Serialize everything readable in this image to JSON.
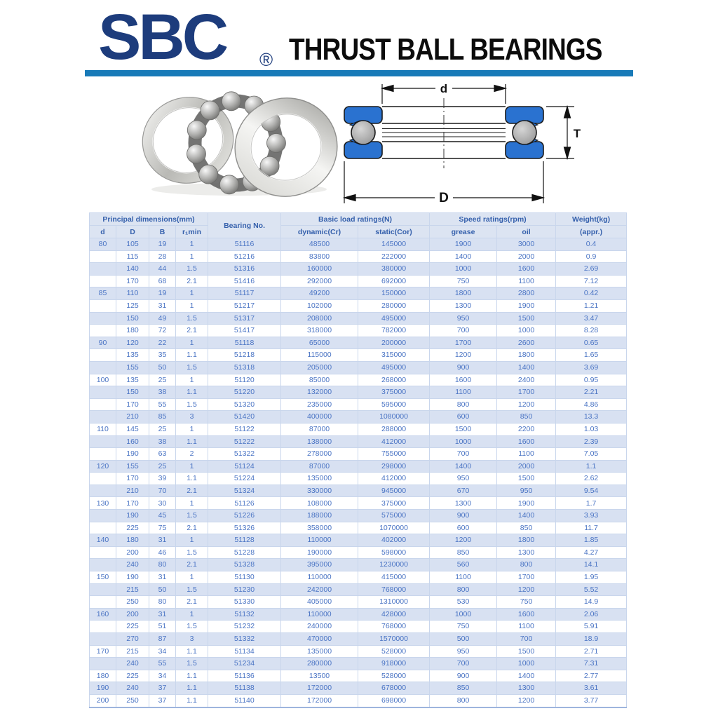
{
  "header": {
    "logo_text": "SBC",
    "registered_mark": "®",
    "title": "THRUST BALL BEARINGS"
  },
  "colors": {
    "divider_bar": "#187ab8",
    "logo_navy": "#1d3c7c",
    "table_header_text": "#3560ac",
    "table_cell_text": "#4a74c4",
    "band_row": "#d8e1f2",
    "diagram_washer_blue": "#2a72d0",
    "ball_gray": "#a9a9a9"
  },
  "diagram": {
    "labels": {
      "bore": "d",
      "outer": "D",
      "height": "T"
    }
  },
  "table": {
    "groups": {
      "principal": "Principal dimensions(mm)",
      "bearing_no": "Bearing No.",
      "basic": "Basic load ratings(N)",
      "speed": "Speed ratings(rpm)",
      "weight": "Weight(kg)"
    },
    "sub": [
      "d",
      "D",
      "B",
      "r₁min",
      "dynamic(Cr)",
      "static(Cor)",
      "grease",
      "oil",
      "(appr.)"
    ],
    "rows": [
      [
        "80",
        "105",
        "19",
        "1",
        "51116",
        "48500",
        "145000",
        "1900",
        "3000",
        "0.4"
      ],
      [
        "",
        "115",
        "28",
        "1",
        "51216",
        "83800",
        "222000",
        "1400",
        "2000",
        "0.9"
      ],
      [
        "",
        "140",
        "44",
        "1.5",
        "51316",
        "160000",
        "380000",
        "1000",
        "1600",
        "2.69"
      ],
      [
        "",
        "170",
        "68",
        "2.1",
        "51416",
        "292000",
        "692000",
        "750",
        "1100",
        "7.12"
      ],
      [
        "85",
        "110",
        "19",
        "1",
        "51117",
        "49200",
        "150000",
        "1800",
        "2800",
        "0.42"
      ],
      [
        "",
        "125",
        "31",
        "1",
        "51217",
        "102000",
        "280000",
        "1300",
        "1900",
        "1.21"
      ],
      [
        "",
        "150",
        "49",
        "1.5",
        "51317",
        "208000",
        "495000",
        "950",
        "1500",
        "3.47"
      ],
      [
        "",
        "180",
        "72",
        "2.1",
        "51417",
        "318000",
        "782000",
        "700",
        "1000",
        "8.28"
      ],
      [
        "90",
        "120",
        "22",
        "1",
        "51118",
        "65000",
        "200000",
        "1700",
        "2600",
        "0.65"
      ],
      [
        "",
        "135",
        "35",
        "1.1",
        "51218",
        "115000",
        "315000",
        "1200",
        "1800",
        "1.65"
      ],
      [
        "",
        "155",
        "50",
        "1.5",
        "51318",
        "205000",
        "495000",
        "900",
        "1400",
        "3.69"
      ],
      [
        "100",
        "135",
        "25",
        "1",
        "51120",
        "85000",
        "268000",
        "1600",
        "2400",
        "0.95"
      ],
      [
        "",
        "150",
        "38",
        "1.1",
        "51220",
        "132000",
        "375000",
        "1100",
        "1700",
        "2.21"
      ],
      [
        "",
        "170",
        "55",
        "1.5",
        "51320",
        "235000",
        "595000",
        "800",
        "1200",
        "4.86"
      ],
      [
        "",
        "210",
        "85",
        "3",
        "51420",
        "400000",
        "1080000",
        "600",
        "850",
        "13.3"
      ],
      [
        "110",
        "145",
        "25",
        "1",
        "51122",
        "87000",
        "288000",
        "1500",
        "2200",
        "1.03"
      ],
      [
        "",
        "160",
        "38",
        "1.1",
        "51222",
        "138000",
        "412000",
        "1000",
        "1600",
        "2.39"
      ],
      [
        "",
        "190",
        "63",
        "2",
        "51322",
        "278000",
        "755000",
        "700",
        "1100",
        "7.05"
      ],
      [
        "120",
        "155",
        "25",
        "1",
        "51124",
        "87000",
        "298000",
        "1400",
        "2000",
        "1.1"
      ],
      [
        "",
        "170",
        "39",
        "1.1",
        "51224",
        "135000",
        "412000",
        "950",
        "1500",
        "2.62"
      ],
      [
        "",
        "210",
        "70",
        "2.1",
        "51324",
        "330000",
        "945000",
        "670",
        "950",
        "9.54"
      ],
      [
        "130",
        "170",
        "30",
        "1",
        "51126",
        "108000",
        "375000",
        "1300",
        "1900",
        "1.7"
      ],
      [
        "",
        "190",
        "45",
        "1.5",
        "51226",
        "188000",
        "575000",
        "900",
        "1400",
        "3.93"
      ],
      [
        "",
        "225",
        "75",
        "2.1",
        "51326",
        "358000",
        "1070000",
        "600",
        "850",
        "11.7"
      ],
      [
        "140",
        "180",
        "31",
        "1",
        "51128",
        "110000",
        "402000",
        "1200",
        "1800",
        "1.85"
      ],
      [
        "",
        "200",
        "46",
        "1.5",
        "51228",
        "190000",
        "598000",
        "850",
        "1300",
        "4.27"
      ],
      [
        "",
        "240",
        "80",
        "2.1",
        "51328",
        "395000",
        "1230000",
        "560",
        "800",
        "14.1"
      ],
      [
        "150",
        "190",
        "31",
        "1",
        "51130",
        "110000",
        "415000",
        "1100",
        "1700",
        "1.95"
      ],
      [
        "",
        "215",
        "50",
        "1.5",
        "51230",
        "242000",
        "768000",
        "800",
        "1200",
        "5.52"
      ],
      [
        "",
        "250",
        "80",
        "2.1",
        "51330",
        "405000",
        "1310000",
        "530",
        "750",
        "14.9"
      ],
      [
        "160",
        "200",
        "31",
        "1",
        "51132",
        "110000",
        "428000",
        "1000",
        "1600",
        "2.06"
      ],
      [
        "",
        "225",
        "51",
        "1.5",
        "51232",
        "240000",
        "768000",
        "750",
        "1100",
        "5.91"
      ],
      [
        "",
        "270",
        "87",
        "3",
        "51332",
        "470000",
        "1570000",
        "500",
        "700",
        "18.9"
      ],
      [
        "170",
        "215",
        "34",
        "1.1",
        "51134",
        "135000",
        "528000",
        "950",
        "1500",
        "2.71"
      ],
      [
        "",
        "240",
        "55",
        "1.5",
        "51234",
        "280000",
        "918000",
        "700",
        "1000",
        "7.31"
      ],
      [
        "180",
        "225",
        "34",
        "1.1",
        "51136",
        "13500",
        "528000",
        "900",
        "1400",
        "2.77"
      ],
      [
        "190",
        "240",
        "37",
        "1.1",
        "51138",
        "172000",
        "678000",
        "850",
        "1300",
        "3.61"
      ],
      [
        "200",
        "250",
        "37",
        "1.1",
        "51140",
        "172000",
        "698000",
        "800",
        "1200",
        "3.77"
      ]
    ]
  }
}
